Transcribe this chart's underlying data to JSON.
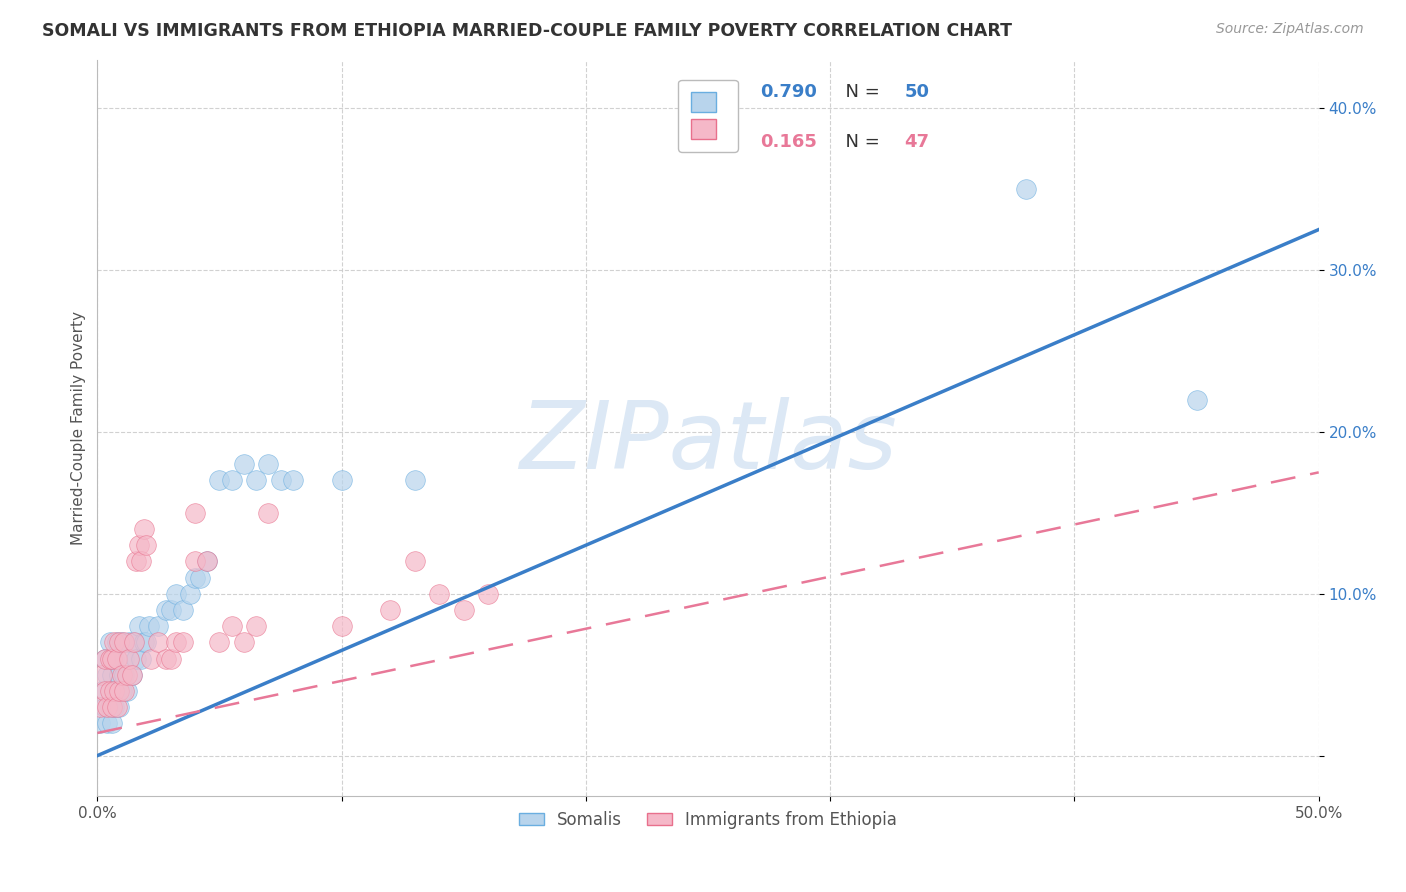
{
  "title": "SOMALI VS IMMIGRANTS FROM ETHIOPIA MARRIED-COUPLE FAMILY POVERTY CORRELATION CHART",
  "source": "Source: ZipAtlas.com",
  "ylabel": "Married-Couple Family Poverty",
  "xlim": [
    0.0,
    0.5
  ],
  "ylim": [
    -0.025,
    0.43
  ],
  "somali_color": "#b8d4ec",
  "somali_edge_color": "#6aaee0",
  "ethiopia_color": "#f5b8c8",
  "ethiopia_edge_color": "#e8708c",
  "somali_line_color": "#3a7ec8",
  "ethiopia_line_color": "#e87898",
  "watermark_text": "ZIPatlas",
  "watermark_color": "#dce8f5",
  "legend_label1": "R = 0.790   N = 50",
  "legend_label2": "R =  0.165   N = 47",
  "legend_r1_val": "0.790",
  "legend_n1_val": "50",
  "legend_r2_val": "0.165",
  "legend_n2_val": "47",
  "somali_label": "Somalis",
  "ethiopia_label": "Immigrants from Ethiopia",
  "background_color": "#ffffff",
  "grid_color": "#cccccc",
  "tick_color_y": "#3a7ec8",
  "tick_color_x": "#555555",
  "somali_line_y0": 0.0,
  "somali_line_y1": 0.325,
  "ethiopia_line_y0": 0.014,
  "ethiopia_line_y1": 0.175,
  "somali_x": [
    0.001,
    0.002,
    0.003,
    0.003,
    0.004,
    0.004,
    0.005,
    0.005,
    0.006,
    0.006,
    0.007,
    0.007,
    0.008,
    0.008,
    0.009,
    0.009,
    0.01,
    0.01,
    0.011,
    0.011,
    0.012,
    0.013,
    0.014,
    0.015,
    0.016,
    0.017,
    0.018,
    0.019,
    0.02,
    0.021,
    0.025,
    0.028,
    0.03,
    0.032,
    0.035,
    0.038,
    0.04,
    0.042,
    0.045,
    0.05,
    0.055,
    0.06,
    0.065,
    0.07,
    0.075,
    0.08,
    0.1,
    0.13,
    0.38,
    0.45
  ],
  "somali_y": [
    0.02,
    0.04,
    0.03,
    0.06,
    0.02,
    0.05,
    0.03,
    0.07,
    0.02,
    0.05,
    0.03,
    0.06,
    0.04,
    0.07,
    0.03,
    0.05,
    0.04,
    0.07,
    0.05,
    0.06,
    0.04,
    0.07,
    0.05,
    0.07,
    0.06,
    0.08,
    0.06,
    0.07,
    0.07,
    0.08,
    0.08,
    0.09,
    0.09,
    0.1,
    0.09,
    0.1,
    0.11,
    0.11,
    0.12,
    0.17,
    0.17,
    0.18,
    0.17,
    0.18,
    0.17,
    0.17,
    0.17,
    0.17,
    0.35,
    0.22
  ],
  "ethiopia_x": [
    0.001,
    0.002,
    0.003,
    0.003,
    0.004,
    0.005,
    0.005,
    0.006,
    0.006,
    0.007,
    0.007,
    0.008,
    0.008,
    0.009,
    0.009,
    0.01,
    0.011,
    0.011,
    0.012,
    0.013,
    0.014,
    0.015,
    0.016,
    0.017,
    0.018,
    0.019,
    0.02,
    0.022,
    0.025,
    0.028,
    0.03,
    0.032,
    0.035,
    0.04,
    0.04,
    0.045,
    0.05,
    0.055,
    0.06,
    0.065,
    0.07,
    0.1,
    0.12,
    0.13,
    0.14,
    0.15,
    0.16
  ],
  "ethiopia_y": [
    0.03,
    0.05,
    0.04,
    0.06,
    0.03,
    0.04,
    0.06,
    0.03,
    0.06,
    0.04,
    0.07,
    0.03,
    0.06,
    0.04,
    0.07,
    0.05,
    0.04,
    0.07,
    0.05,
    0.06,
    0.05,
    0.07,
    0.12,
    0.13,
    0.12,
    0.14,
    0.13,
    0.06,
    0.07,
    0.06,
    0.06,
    0.07,
    0.07,
    0.12,
    0.15,
    0.12,
    0.07,
    0.08,
    0.07,
    0.08,
    0.15,
    0.08,
    0.09,
    0.12,
    0.1,
    0.09,
    0.1
  ]
}
